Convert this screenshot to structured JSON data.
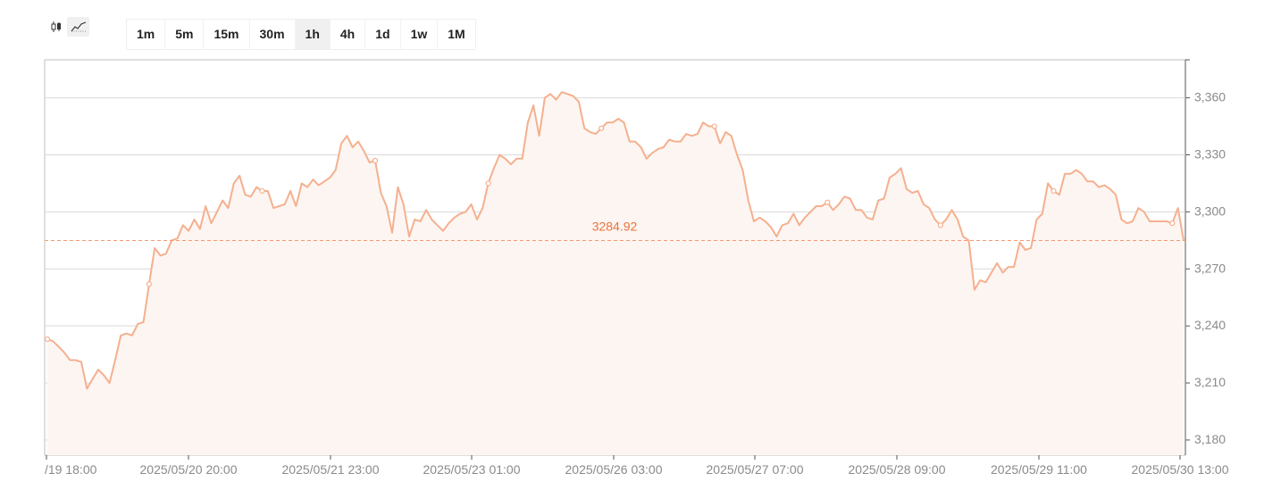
{
  "toolbar": {
    "chart_type_icons": [
      "candlestick-icon",
      "line-chart-icon"
    ],
    "active_chart_type": "line-chart-icon",
    "intervals": [
      "1m",
      "5m",
      "15m",
      "30m",
      "1h",
      "4h",
      "1d",
      "1w",
      "1M"
    ],
    "active_interval": "1h"
  },
  "colors": {
    "line": "#f4b08f",
    "area": "#fdf5f1",
    "current_price_line": "#f39a70",
    "current_price_label": "#e8743b",
    "grid": "#d9d9d9",
    "axis_text": "#8a8a8a"
  },
  "chart_data": {
    "type": "area",
    "title": "",
    "xlabel": "",
    "ylabel": "",
    "ylim": [
      3172,
      3380
    ],
    "yticks": [
      3180,
      3210,
      3240,
      3270,
      3300,
      3330,
      3360
    ],
    "ytick_labels": [
      "3,180",
      "3,210",
      "3,240",
      "3,270",
      "3,300",
      "3,330",
      "3,360"
    ],
    "xtick_labels": [
      "/19 18:00",
      "2025/05/20 20:00",
      "2025/05/21 23:00",
      "2025/05/23 01:00",
      "2025/05/26 03:00",
      "2025/05/27 07:00",
      "2025/05/28 09:00",
      "2025/05/29 11:00",
      "2025/05/30 13:00"
    ],
    "current_price": 3284.92,
    "current_price_label": "3284.92",
    "series": [
      {
        "values": [
          3233,
          3232,
          3229,
          3226,
          3222,
          3222,
          3221,
          3207,
          3212,
          3217,
          3214,
          3210,
          3222,
          3235,
          3236,
          3235,
          3241,
          3242,
          3262,
          3281,
          3277,
          3278,
          3285,
          3286,
          3293,
          3290,
          3296,
          3291,
          3303,
          3294,
          3300,
          3306,
          3302,
          3315,
          3319,
          3309,
          3308,
          3313,
          3311,
          3311,
          3302,
          3303,
          3304,
          3311,
          3303,
          3315,
          3313,
          3317,
          3314,
          3316,
          3318,
          3322,
          3336,
          3340,
          3334,
          3337,
          3332,
          3326,
          3327,
          3310,
          3303,
          3289,
          3313,
          3304,
          3287,
          3296,
          3295,
          3301,
          3296,
          3293,
          3290,
          3294,
          3297,
          3299,
          3300,
          3304,
          3296,
          3302,
          3315,
          3323,
          3330,
          3328,
          3325,
          3328,
          3328,
          3347,
          3356,
          3340,
          3360,
          3362,
          3359,
          3363,
          3362,
          3361,
          3358,
          3344,
          3342,
          3341,
          3344,
          3347,
          3347,
          3349,
          3347,
          3337,
          3337,
          3334,
          3328,
          3331,
          3333,
          3334,
          3338,
          3337,
          3337,
          3341,
          3340,
          3341,
          3347,
          3345,
          3345,
          3336,
          3342,
          3340,
          3330,
          3322,
          3306,
          3295,
          3297,
          3295,
          3292,
          3287,
          3293,
          3294,
          3299,
          3293,
          3297,
          3300,
          3303,
          3303,
          3305,
          3301,
          3304,
          3308,
          3307,
          3301,
          3301,
          3297,
          3296,
          3306,
          3307,
          3318,
          3320,
          3323,
          3312,
          3310,
          3311,
          3304,
          3302,
          3296,
          3293,
          3296,
          3301,
          3296,
          3287,
          3285,
          3259,
          3264,
          3263,
          3268,
          3273,
          3268,
          3271,
          3271,
          3284,
          3280,
          3281,
          3296,
          3299,
          3315,
          3311,
          3309,
          3320,
          3320,
          3322,
          3320,
          3316,
          3316,
          3313,
          3314,
          3312,
          3309,
          3296,
          3294,
          3295,
          3302,
          3300,
          3295,
          3295,
          3295,
          3295,
          3294,
          3302,
          3285
        ]
      }
    ],
    "marker_indices": [
      0,
      18,
      38,
      58,
      78,
      98,
      118,
      138,
      158,
      178,
      199
    ]
  }
}
